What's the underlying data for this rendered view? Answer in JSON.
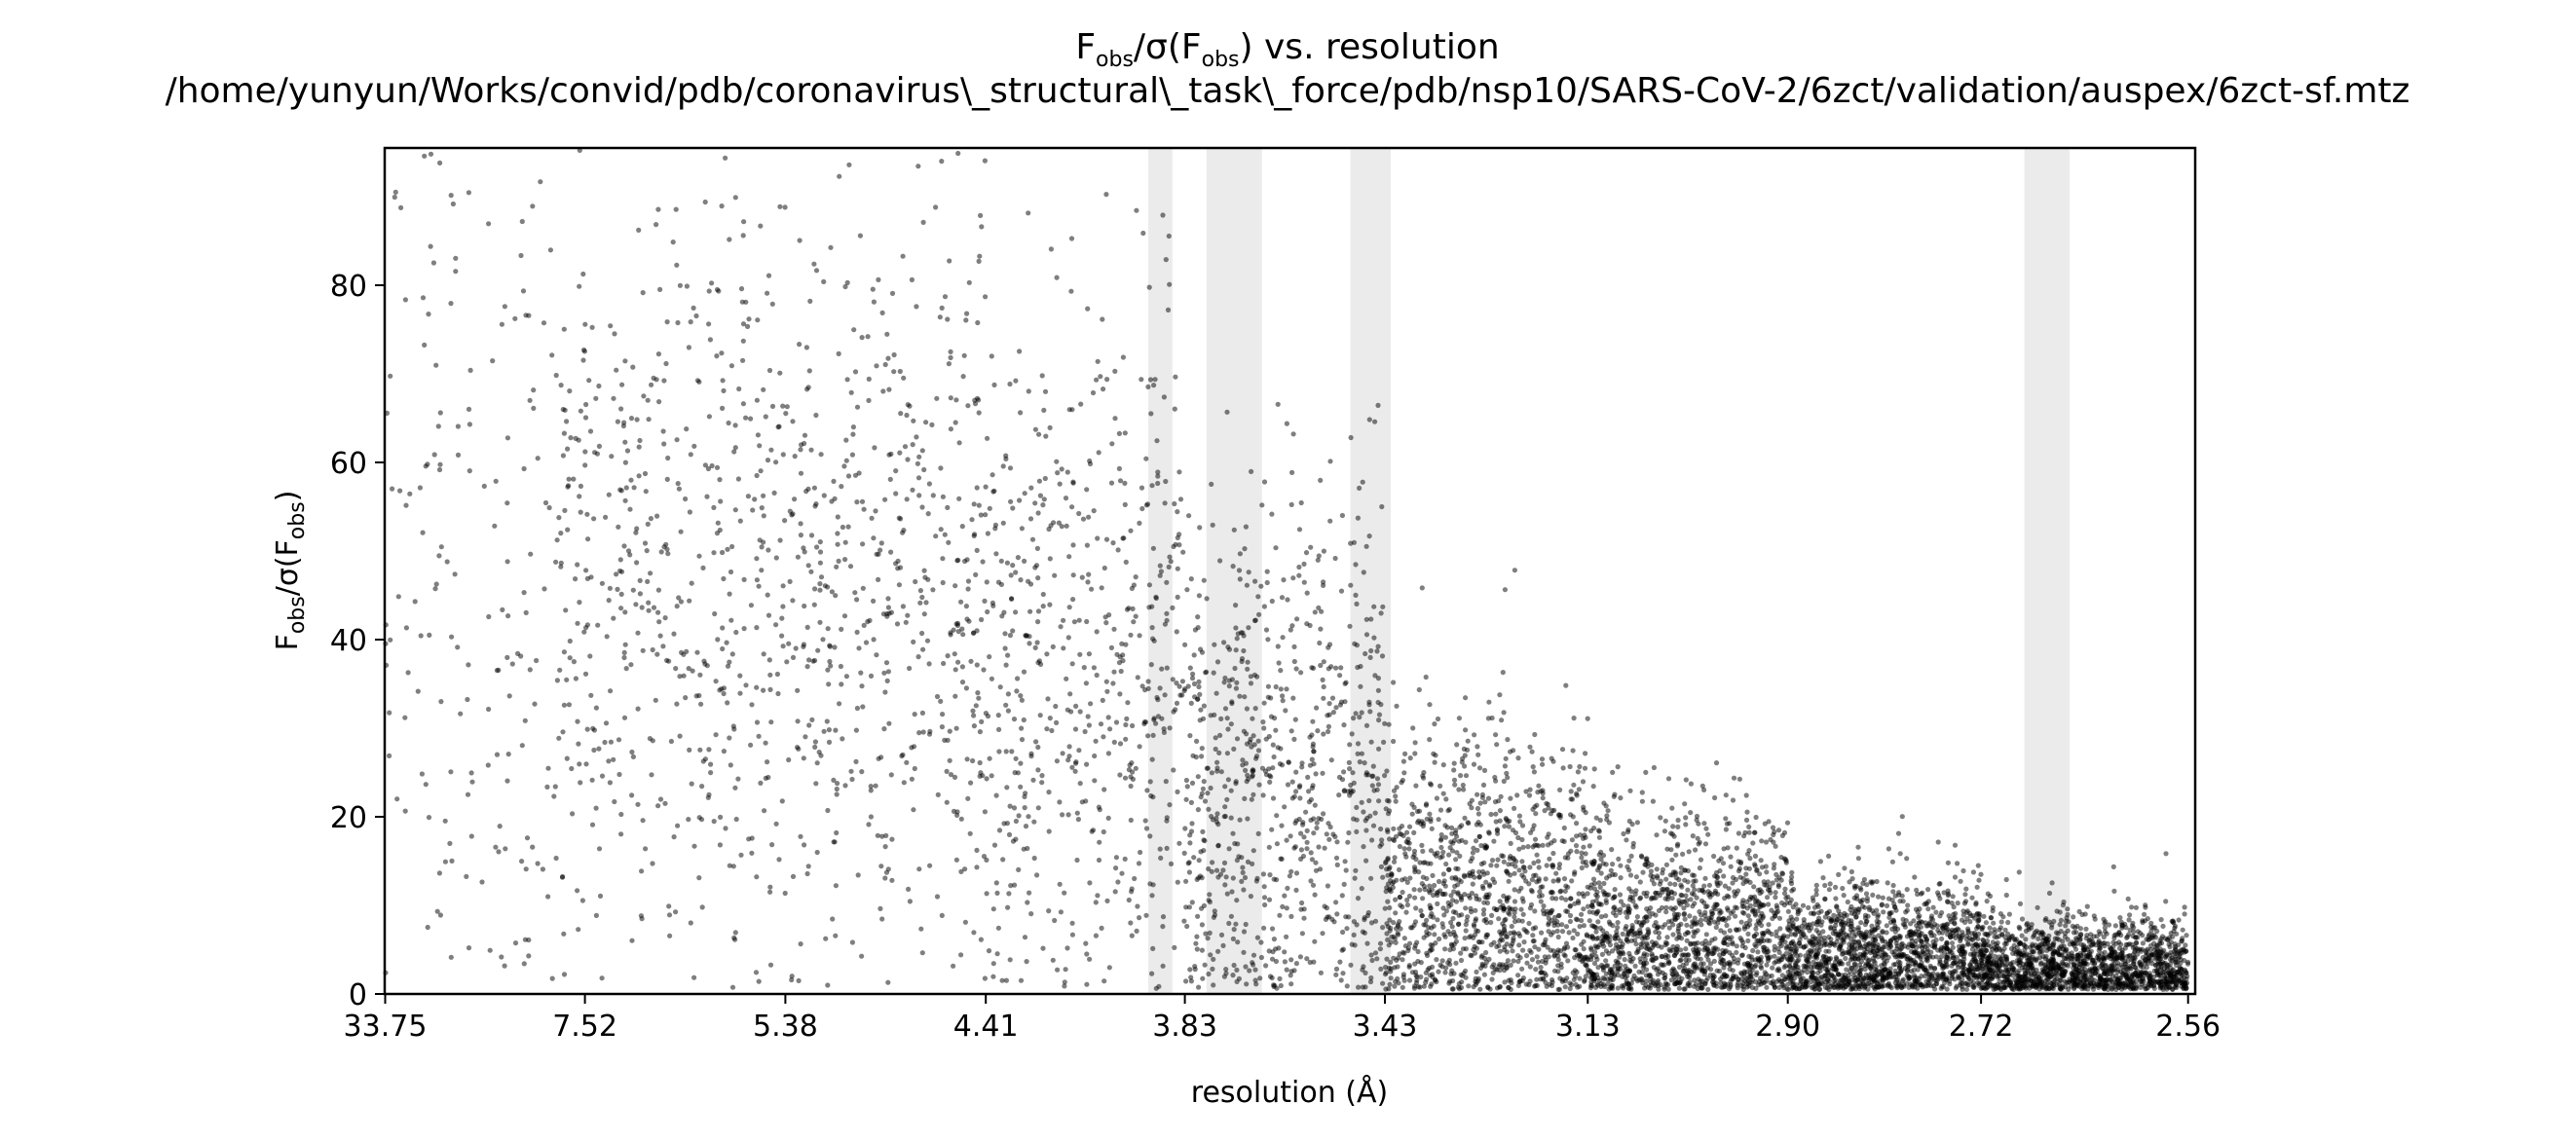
{
  "chart_data": {
    "type": "scatter",
    "title": {
      "line1_prefix": "F",
      "line1_sub": "obs",
      "line1_mid": "/σ(F",
      "line1_sub2": "obs",
      "line1_suffix": ") vs. resolution",
      "line2": "/home/yunyun/Works/convid/pdb/coronavirus\\_structural\\_task\\_force/pdb/nsp10/SARS-CoV-2/6zct/validation/auspex/6zct-sf.mtz"
    },
    "xlabel": "resolution (Å)",
    "ylabel": {
      "prefix": "F",
      "sub": "obs",
      "mid": "/σ(F",
      "sub2": "obs",
      "suffix": ")"
    },
    "x_scale": "reciprocal-square (1/d²), ticks labeled as resolution d in Å",
    "xlim_resolution": [
      34.6,
      2.555
    ],
    "ylim": [
      0,
      95.5
    ],
    "x_ticks": [
      "33.75",
      "7.52",
      "5.38",
      "4.41",
      "3.83",
      "3.43",
      "3.13",
      "2.90",
      "2.72",
      "2.56"
    ],
    "y_ticks": [
      0,
      20,
      40,
      60,
      80
    ],
    "grid": false,
    "legend": "none",
    "point_color": "#000000",
    "point_opacity": 0.5,
    "ice_ring_color": "#ebebeb",
    "ice_ring_bands_resolution": [
      [
        3.92,
        3.86
      ],
      [
        3.78,
        3.66
      ],
      [
        3.49,
        3.42
      ],
      [
        2.684,
        2.648
      ]
    ],
    "series": [
      {
        "distribution": [
          {
            "res_range": [
              34.6,
              8.0
            ],
            "count": 180,
            "y_mean": 48,
            "y_sd": 28
          },
          {
            "res_range": [
              8.0,
              5.4
            ],
            "count": 500,
            "y_mean": 47,
            "y_sd": 22
          },
          {
            "res_range": [
              5.4,
              4.41
            ],
            "count": 500,
            "y_mean": 44,
            "y_sd": 21
          },
          {
            "res_range": [
              4.41,
              3.83
            ],
            "count": 550,
            "y_mean": 36,
            "y_sd": 20
          },
          {
            "res_range": [
              3.83,
              3.43
            ],
            "count": 750,
            "y_mean": 22,
            "y_sd": 17
          },
          {
            "res_range": [
              3.43,
              3.13
            ],
            "count": 1100,
            "y_mean": 10,
            "y_sd": 10
          },
          {
            "res_range": [
              3.13,
              2.9
            ],
            "count": 1300,
            "y_mean": 6,
            "y_sd": 7
          },
          {
            "res_range": [
              2.9,
              2.72
            ],
            "count": 1400,
            "y_mean": 4,
            "y_sd": 4.5
          },
          {
            "res_range": [
              2.72,
              2.56
            ],
            "count": 1500,
            "y_mean": 3,
            "y_sd": 3
          }
        ]
      }
    ]
  }
}
